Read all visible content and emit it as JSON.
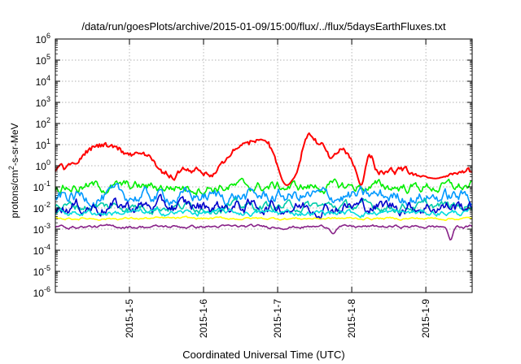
{
  "chart_data": {
    "type": "line",
    "title": "/data/run/goesPlots/archive/2015-01-09/15:00/flux/../flux/5daysEarthFluxes.txt",
    "xlabel": "Coordinated Universal Time (UTC)",
    "ylabel": "protons/cm2-s-sr-MeV",
    "ylabel_parts": {
      "base": "protons/cm",
      "sup": "2",
      "rest": "-s-sr-MeV"
    },
    "y_scale": "log",
    "ylim": [
      1e-06,
      1000000.0
    ],
    "y_ticks": [
      {
        "value": 1e-06,
        "base": "10",
        "exp": "-6"
      },
      {
        "value": 1e-05,
        "base": "10",
        "exp": "-5"
      },
      {
        "value": 0.0001,
        "base": "10",
        "exp": "-4"
      },
      {
        "value": 0.001,
        "base": "10",
        "exp": "-3"
      },
      {
        "value": 0.01,
        "base": "10",
        "exp": "-2"
      },
      {
        "value": 0.1,
        "base": "10",
        "exp": "-1"
      },
      {
        "value": 1.0,
        "base": "10",
        "exp": "0"
      },
      {
        "value": 10.0,
        "base": "10",
        "exp": "1"
      },
      {
        "value": 100.0,
        "base": "10",
        "exp": "2"
      },
      {
        "value": 1000.0,
        "base": "10",
        "exp": "3"
      },
      {
        "value": 10000.0,
        "base": "10",
        "exp": "4"
      },
      {
        "value": 100000.0,
        "base": "10",
        "exp": "5"
      },
      {
        "value": 1000000.0,
        "base": "10",
        "exp": "6"
      }
    ],
    "xlim": [
      "2015-01-04T00:00",
      "2015-01-09T15:00"
    ],
    "x_ticks": [
      {
        "value": "2015-01-05T00:00",
        "label": "2015-1-5"
      },
      {
        "value": "2015-01-06T00:00",
        "label": "2015-1-6"
      },
      {
        "value": "2015-01-07T00:00",
        "label": "2015-1-7"
      },
      {
        "value": "2015-01-08T00:00",
        "label": "2015-1-8"
      },
      {
        "value": "2015-01-09T00:00",
        "label": "2015-1-9"
      }
    ],
    "grid": true,
    "legend": "none",
    "series": [
      {
        "color": "#ff0000",
        "baseline": 0.5,
        "noise": 0.28,
        "peaks": [
          {
            "time": "2015-01-04T16:00",
            "value": 10,
            "width_h": 6
          },
          {
            "time": "2015-01-05T04:00",
            "value": 3,
            "width_h": 4
          },
          {
            "time": "2015-01-06T12:00",
            "value": 5,
            "width_h": 4
          },
          {
            "time": "2015-01-06T20:00",
            "value": 20,
            "width_h": 6
          },
          {
            "time": "2015-01-07T10:00",
            "value": 35,
            "width_h": 2
          },
          {
            "time": "2015-01-07T14:00",
            "value": 10,
            "width_h": 2
          },
          {
            "time": "2015-01-07T21:00",
            "value": 5,
            "width_h": 3
          },
          {
            "time": "2015-01-08T04:00",
            "value": 10,
            "width_h": 2
          }
        ],
        "dips": [
          {
            "time": "2015-01-07T03:00",
            "value": 0.12,
            "width_h": 4
          },
          {
            "time": "2015-01-08T03:00",
            "value": 0.12,
            "width_h": 2
          },
          {
            "time": "2015-01-09T03:00",
            "value": 0.25,
            "width_h": 6
          }
        ]
      },
      {
        "color": "#00ee00",
        "baseline": 0.1,
        "noise": 0.35,
        "peaks": [],
        "dips": []
      },
      {
        "color": "#0099ff",
        "baseline": 0.035,
        "noise": 0.45,
        "peaks": [],
        "dips": []
      },
      {
        "color": "#00ccaa",
        "baseline": 0.012,
        "noise": 0.3,
        "peaks": [],
        "dips": []
      },
      {
        "color": "#0000cc",
        "baseline": 0.012,
        "noise": 0.45,
        "peaks": [],
        "dips": []
      },
      {
        "color": "#00dddd",
        "baseline": 0.006,
        "noise": 0.2,
        "peaks": [],
        "dips": []
      },
      {
        "color": "#ffff00",
        "baseline": 0.0032,
        "noise": 0.08,
        "peaks": [],
        "dips": []
      },
      {
        "color": "#882288",
        "baseline": 0.0013,
        "noise": 0.1,
        "peaks": [],
        "dips": [
          {
            "time": "2015-01-07T18:00",
            "value": 0.0006,
            "width_h": 1
          },
          {
            "time": "2015-01-09T08:00",
            "value": 0.0003,
            "width_h": 1
          }
        ]
      }
    ]
  }
}
